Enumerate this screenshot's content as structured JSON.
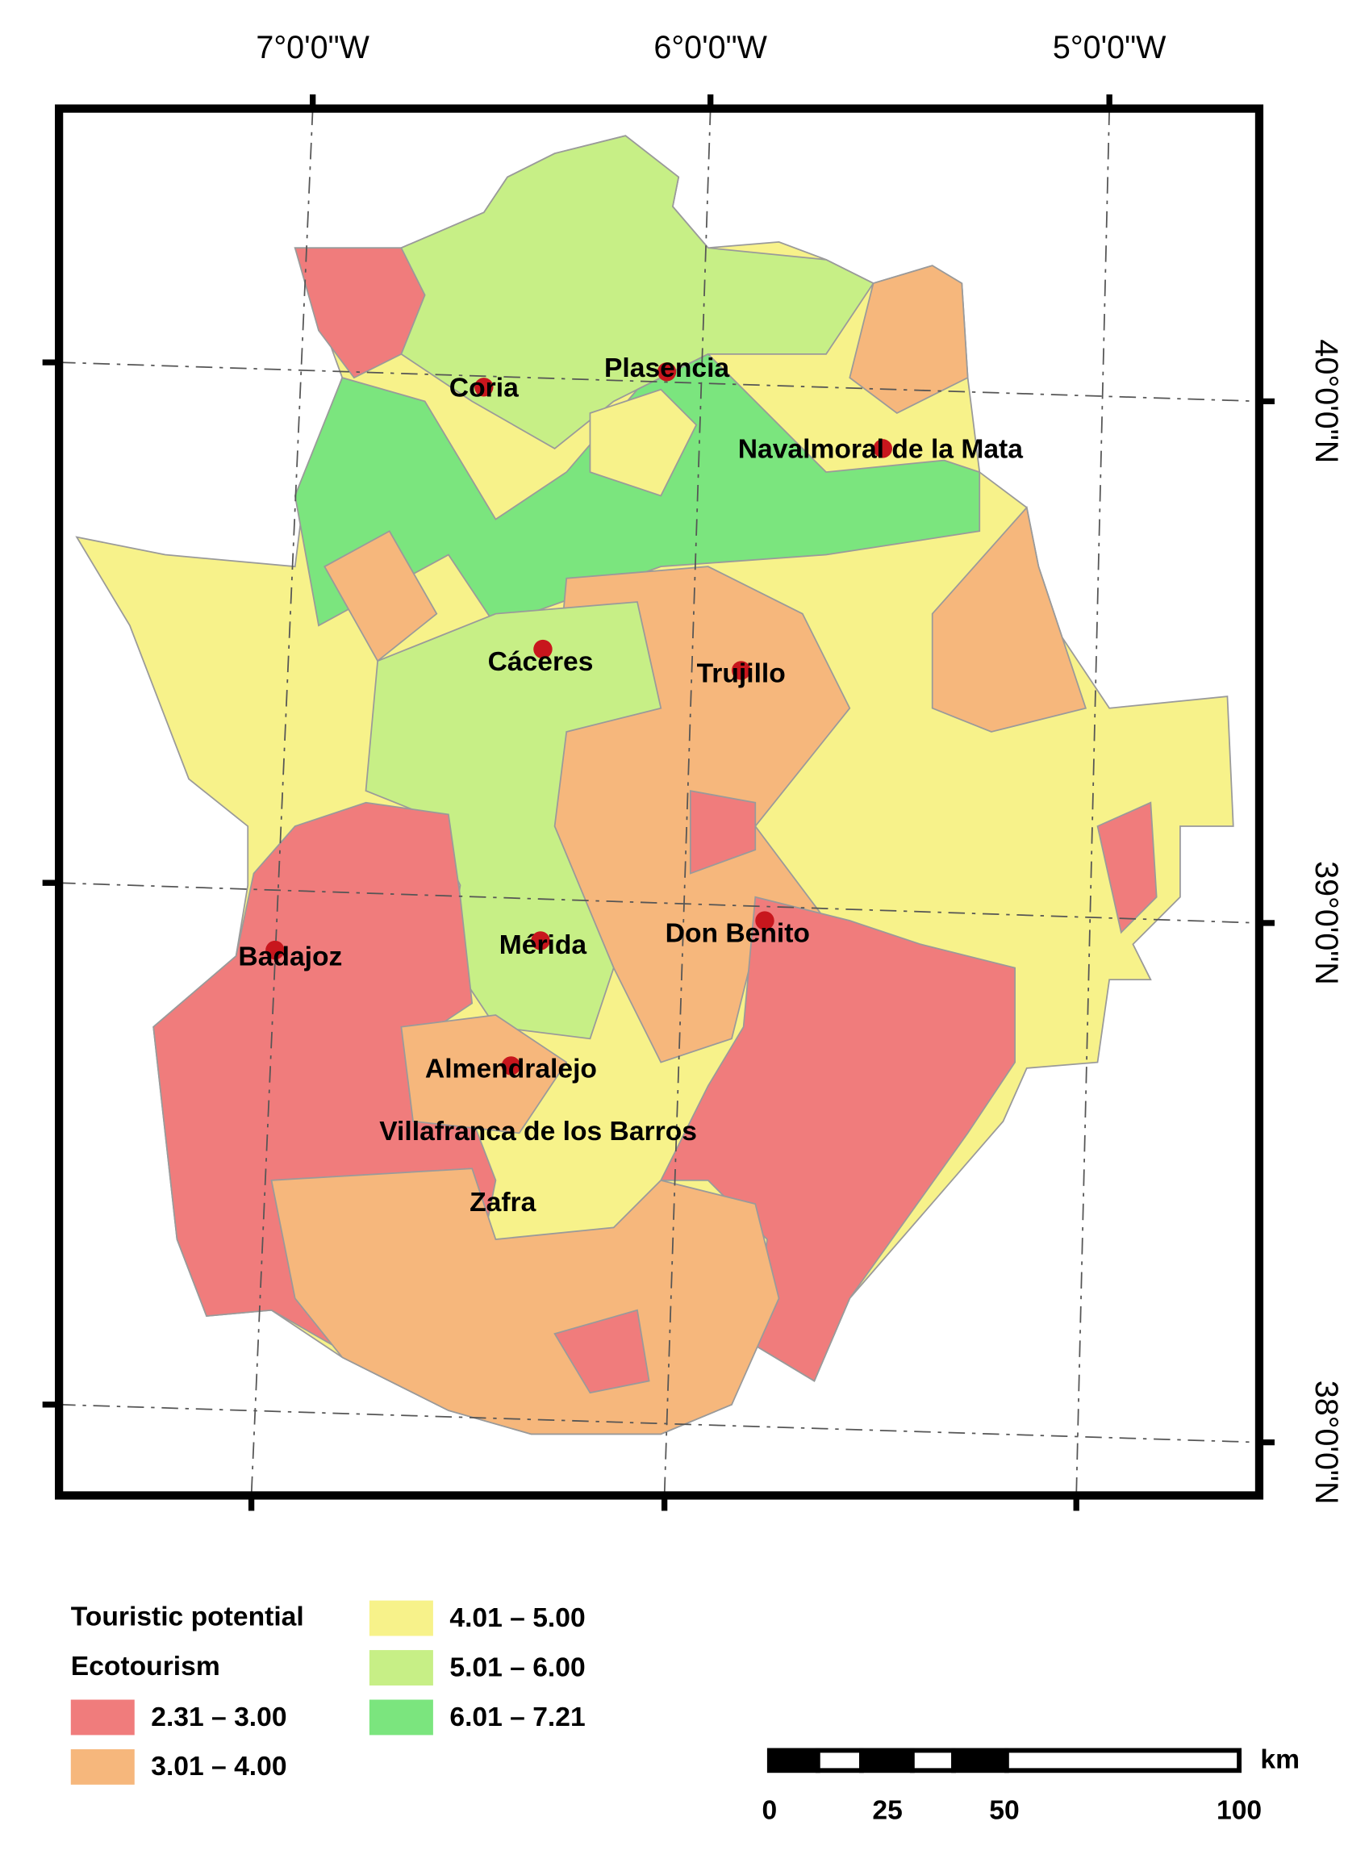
{
  "map": {
    "top_labels": [
      "7°0'0\"W",
      "6°0'0\"W",
      "5°0'0\"W"
    ],
    "right_labels": [
      "40°0'0\"N",
      "39°0'0\"N",
      "38°0'0\"N"
    ],
    "cities": [
      "Coria",
      "Plasencia",
      "Navalmoral de la Mata",
      "Cáceres",
      "Trujillo",
      "Don Benito",
      "Badajoz",
      "Mérida",
      "Almendralejo",
      "Villafranca de los Barros",
      "Zafra"
    ],
    "legend": {
      "title": "Touristic potential",
      "subtitle": "Ecotourism",
      "classes": [
        {
          "label": "2.31 – 3.00",
          "color": "#f07c7c"
        },
        {
          "label": "3.01 – 4.00",
          "color": "#f6b77c"
        },
        {
          "label": "4.01 – 5.00",
          "color": "#f7f28a"
        },
        {
          "label": "5.01 – 6.00",
          "color": "#c7ef86"
        },
        {
          "label": "6.01 – 7.21",
          "color": "#7be57e"
        }
      ]
    },
    "scale_bar": {
      "unit": "km",
      "ticks": [
        0,
        25,
        50,
        100
      ]
    }
  }
}
